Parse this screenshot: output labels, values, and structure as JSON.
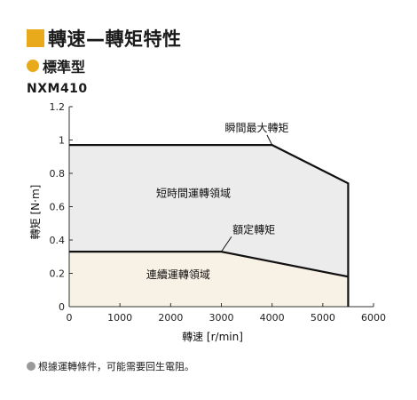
{
  "header": {
    "title": "轉速—轉矩特性",
    "subtitle": "標準型",
    "model": "NXM410"
  },
  "colors": {
    "accent": "#e8a91a",
    "short_region": "#ececec",
    "continuous_region": "#f8f1e5",
    "line": "#111111",
    "note_dot": "#999999"
  },
  "chart_data": {
    "type": "area",
    "xlabel": "轉速 [r/min]",
    "ylabel": "轉矩 [N·m]",
    "xlim": [
      0,
      6000
    ],
    "ylim": [
      0,
      1.2
    ],
    "xticks": [
      0,
      1000,
      2000,
      3000,
      4000,
      5000,
      6000
    ],
    "yticks": [
      0,
      0.2,
      0.4,
      0.6,
      0.8,
      1,
      1.2
    ],
    "xtick_labels": [
      "0",
      "1000",
      "2000",
      "3000",
      "4000",
      "5000",
      "6000"
    ],
    "ytick_labels": [
      "0",
      "0.2",
      "0.4",
      "0.6",
      "0.8",
      "1",
      "1.2"
    ],
    "series": [
      {
        "name": "瞬間最大轉矩",
        "x": [
          0,
          4000,
          5500,
          5500
        ],
        "y": [
          0.97,
          0.97,
          0.74,
          0
        ]
      },
      {
        "name": "額定轉矩",
        "x": [
          0,
          3000,
          5500
        ],
        "y": [
          0.33,
          0.33,
          0.18
        ]
      }
    ],
    "region_labels": [
      "短時間運轉領域",
      "連續運轉領域"
    ],
    "grid": false
  },
  "footnote": "根據運轉條件，可能需要回生電阻。"
}
